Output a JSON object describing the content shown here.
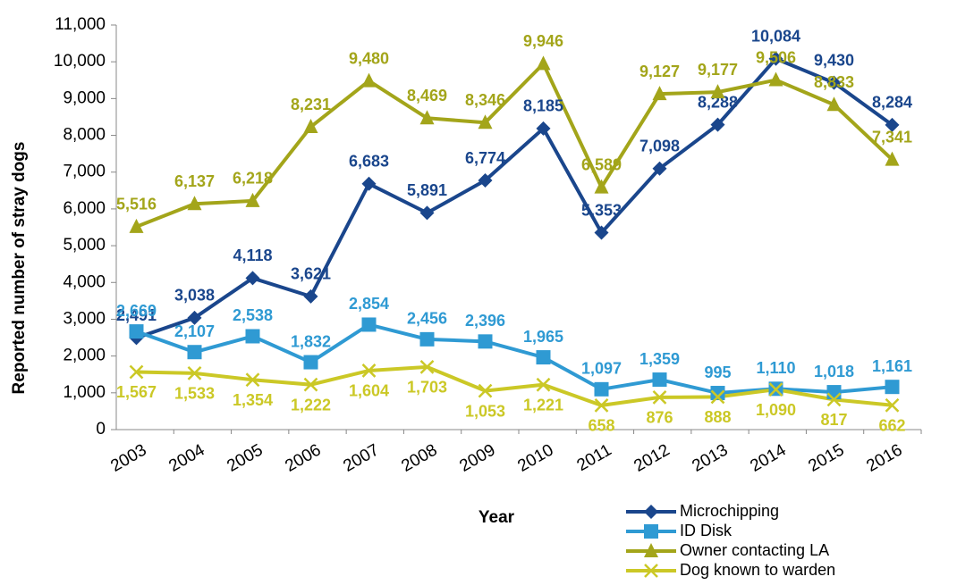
{
  "chart_data": {
    "type": "line",
    "x_label": "Year",
    "y_label": "Reported number of stray dogs",
    "categories": [
      "2003",
      "2004",
      "2005",
      "2006",
      "2007",
      "2008",
      "2009",
      "2010",
      "2011",
      "2012",
      "2013",
      "2014",
      "2015",
      "2016"
    ],
    "ylim": [
      0,
      11000
    ],
    "yticks": [
      0,
      {
        "value": 1000,
        "label": "1,000"
      },
      {
        "value": 2000,
        "label": "2,000"
      },
      {
        "value": 3000,
        "label": "3,000"
      },
      {
        "value": 4000,
        "label": "4,000"
      },
      {
        "value": 5000,
        "label": "5,000"
      },
      {
        "value": 6000,
        "label": "6,000"
      },
      {
        "value": 7000,
        "label": "7,000"
      },
      {
        "value": 8000,
        "label": "8,000"
      },
      {
        "value": 9000,
        "label": "9,000"
      },
      {
        "value": 10000,
        "label": "10,000"
      },
      {
        "value": 11000,
        "label": "11,000"
      }
    ],
    "grid": false,
    "legend": "bottom-right",
    "series": [
      {
        "name": "Microchipping",
        "color": "#1a468c",
        "marker": "diamond",
        "values": [
          2491,
          3038,
          4118,
          3621,
          6683,
          5891,
          6774,
          8185,
          5353,
          7098,
          8288,
          10084,
          9430,
          8284
        ],
        "value_labels": [
          "2,491",
          "3,038",
          "4,118",
          "3,621",
          "6,683",
          "5,891",
          "6,774",
          "8,185",
          "5,353",
          "7,098",
          "8,288",
          "10,084",
          "9,430",
          "8,284"
        ]
      },
      {
        "name": "ID Disk",
        "color": "#2f9ad3",
        "marker": "square",
        "values": [
          2669,
          2107,
          2538,
          1832,
          2854,
          2456,
          2396,
          1965,
          1097,
          1359,
          995,
          1110,
          1018,
          1161
        ],
        "value_labels": [
          "2,669",
          "2,107",
          "2,538",
          "1,832",
          "2,854",
          "2,456",
          "2,396",
          "1,965",
          "1,097",
          "1,359",
          "995",
          "1,110",
          "1,018",
          "1,161"
        ]
      },
      {
        "name": "Owner contacting LA",
        "color": "#a3a51a",
        "marker": "triangle",
        "values": [
          5516,
          6137,
          6218,
          8231,
          9480,
          8469,
          8346,
          9946,
          6589,
          9127,
          9177,
          9506,
          8833,
          7341
        ],
        "value_labels": [
          "5,516",
          "6,137",
          "6,218",
          "8,231",
          "9,480",
          "8,469",
          "8,346",
          "9,946",
          "6,589",
          "9,127",
          "9,177",
          "9,506",
          "8,833",
          "7,341"
        ]
      },
      {
        "name": "Dog known to warden",
        "color": "#cbc826",
        "marker": "x",
        "values": [
          1567,
          1533,
          1354,
          1222,
          1604,
          1703,
          1053,
          1221,
          658,
          876,
          888,
          1090,
          817,
          662
        ],
        "value_labels": [
          "1,567",
          "1,533",
          "1,354",
          "1,222",
          "1,604",
          "1,703",
          "1,053",
          "1,221",
          "658",
          "876",
          "888",
          "1,090",
          "817",
          "662"
        ]
      }
    ]
  }
}
